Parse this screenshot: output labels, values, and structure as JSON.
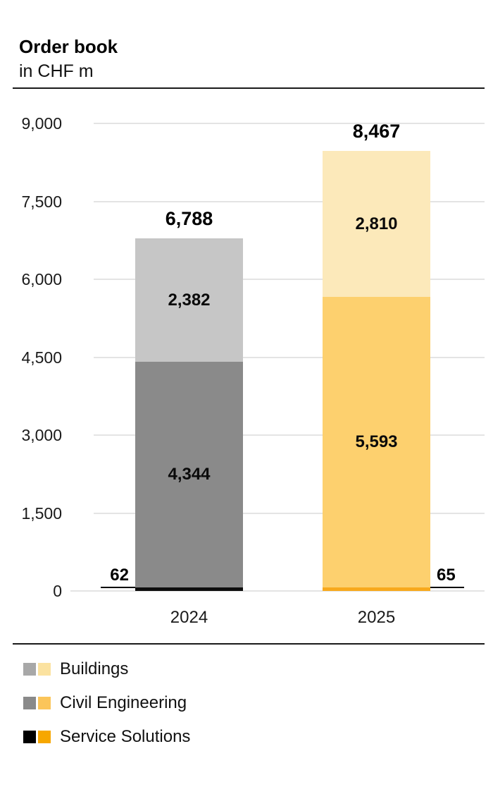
{
  "header": {
    "title": "Order book",
    "subtitle": "in CHF m"
  },
  "chart_data": {
    "type": "bar",
    "stacked": true,
    "title": "Order book",
    "unit_label": "in CHF m",
    "categories": [
      "2024",
      "2025"
    ],
    "series": [
      {
        "name": "Service Solutions",
        "values": [
          62,
          65
        ],
        "labels": [
          "62",
          "65"
        ],
        "colors": [
          "#0d0d0d",
          "#f8a91c"
        ],
        "labels_outside": true
      },
      {
        "name": "Civil Engineering",
        "values": [
          4344,
          5593
        ],
        "labels": [
          "4,344",
          "5,593"
        ],
        "colors": [
          "#8a8a8a",
          "#fdd06e"
        ],
        "labels_outside": false
      },
      {
        "name": "Buildings",
        "values": [
          2382,
          2810
        ],
        "labels": [
          "2,382",
          "2,810"
        ],
        "colors": [
          "#c6c6c6",
          "#fce9ba"
        ],
        "labels_outside": false
      }
    ],
    "totals": {
      "values": [
        6788,
        8467
      ],
      "labels": [
        "6,788",
        "8,467"
      ]
    },
    "y_axis": {
      "tick_values": [
        9000,
        7500,
        6000,
        4500,
        3000,
        1500,
        0
      ],
      "tick_labels": [
        "9,000",
        "7,500",
        "6,000",
        "4,500",
        "3,000",
        "1,500",
        "0"
      ],
      "ylim": [
        0,
        9000
      ],
      "grid": true
    },
    "legend_position": "bottom-left"
  },
  "legend": {
    "items": [
      {
        "label": "Buildings",
        "swatches": [
          "#a8a8a8",
          "#fbe2a0"
        ]
      },
      {
        "label": "Civil Engineering",
        "swatches": [
          "#8a8a8a",
          "#fbc55a"
        ]
      },
      {
        "label": "Service Solutions",
        "swatches": [
          "#000000",
          "#f6a700"
        ]
      }
    ]
  }
}
